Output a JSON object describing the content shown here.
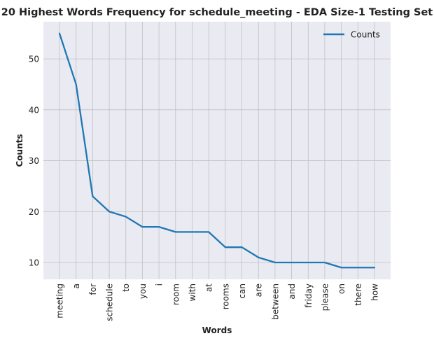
{
  "chart_data": {
    "type": "line",
    "title": "20 Highest Words Frequency for schedule_meeting - EDA Size-1 Testing Set",
    "xlabel": "Words",
    "ylabel": "Counts",
    "categories": [
      "meeting",
      "a",
      "for",
      "schedule",
      "to",
      "you",
      "i",
      "room",
      "with",
      "at",
      "rooms",
      "can",
      "are",
      "between",
      "and",
      "friday",
      "please",
      "on",
      "there",
      "how"
    ],
    "series": [
      {
        "name": "Counts",
        "color": "#1f77b4",
        "values": [
          55,
          45,
          23,
          20,
          19,
          17,
          17,
          16,
          16,
          16,
          13,
          13,
          11,
          10,
          10,
          10,
          10,
          9,
          9,
          9
        ]
      }
    ],
    "yticks": [
      10,
      20,
      30,
      40,
      50
    ],
    "ylim": [
      6.7,
      57.3
    ],
    "grid": true,
    "legend": "top-right",
    "colors": {
      "plot_background": "#eaeaf2",
      "grid": "#c0c0c0",
      "line": "#1f77b4"
    }
  }
}
